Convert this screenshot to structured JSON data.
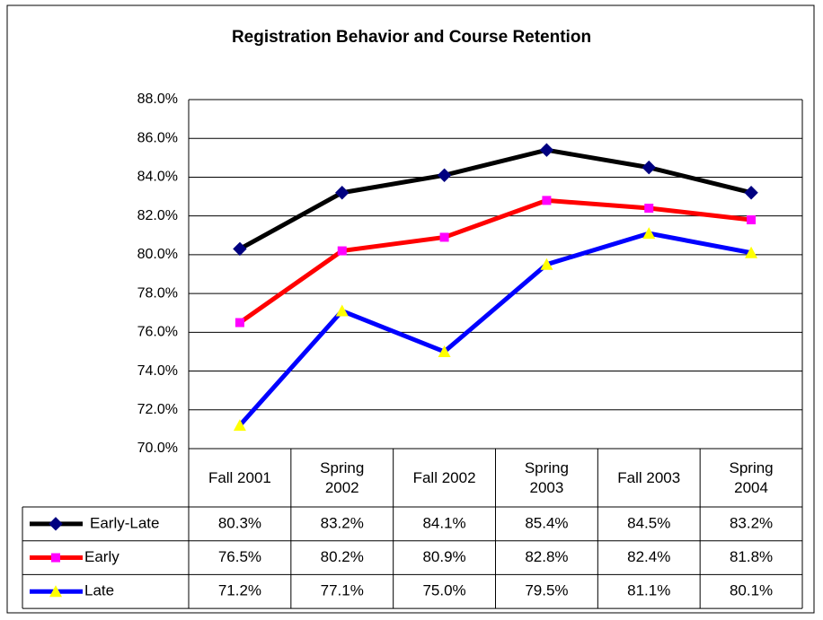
{
  "chart_data": {
    "type": "line",
    "title": "Registration Behavior and Course Retention",
    "categories": [
      "Fall 2001",
      "Spring 2002",
      "Fall 2002",
      "Spring 2003",
      "Fall 2003",
      "Spring 2004"
    ],
    "series": [
      {
        "name": "Early-Late",
        "color": "#000000",
        "marker": "diamond",
        "marker_color": "#000080",
        "values": [
          80.3,
          83.2,
          84.1,
          85.4,
          84.5,
          83.2
        ],
        "value_labels": [
          "80.3%",
          "83.2%",
          "84.1%",
          "85.4%",
          "84.5%",
          "83.2%"
        ]
      },
      {
        "name": "Early",
        "color": "#ff0000",
        "marker": "square",
        "marker_color": "#ff00ff",
        "values": [
          76.5,
          80.2,
          80.9,
          82.8,
          82.4,
          81.8
        ],
        "value_labels": [
          "76.5%",
          "80.2%",
          "80.9%",
          "82.8%",
          "82.4%",
          "81.8%"
        ]
      },
      {
        "name": "Late",
        "color": "#0000ff",
        "marker": "triangle",
        "marker_color": "#ffff00",
        "values": [
          71.2,
          77.1,
          75.0,
          79.5,
          81.1,
          80.1
        ],
        "value_labels": [
          "71.2%",
          "77.1%",
          "75.0%",
          "79.5%",
          "81.1%",
          "80.1%"
        ]
      }
    ],
    "ylim": [
      70,
      88
    ],
    "yticks": [
      {
        "value": 70,
        "label": "70.0%"
      },
      {
        "value": 72,
        "label": "72.0%"
      },
      {
        "value": 74,
        "label": "74.0%"
      },
      {
        "value": 76,
        "label": "76.0%"
      },
      {
        "value": 78,
        "label": "78.0%"
      },
      {
        "value": 80,
        "label": "80.0%"
      },
      {
        "value": 82,
        "label": "82.0%"
      },
      {
        "value": 84,
        "label": "84.0%"
      },
      {
        "value": 86,
        "label": "86.0%"
      },
      {
        "value": 88,
        "label": "88.0%"
      }
    ],
    "grid": true
  }
}
